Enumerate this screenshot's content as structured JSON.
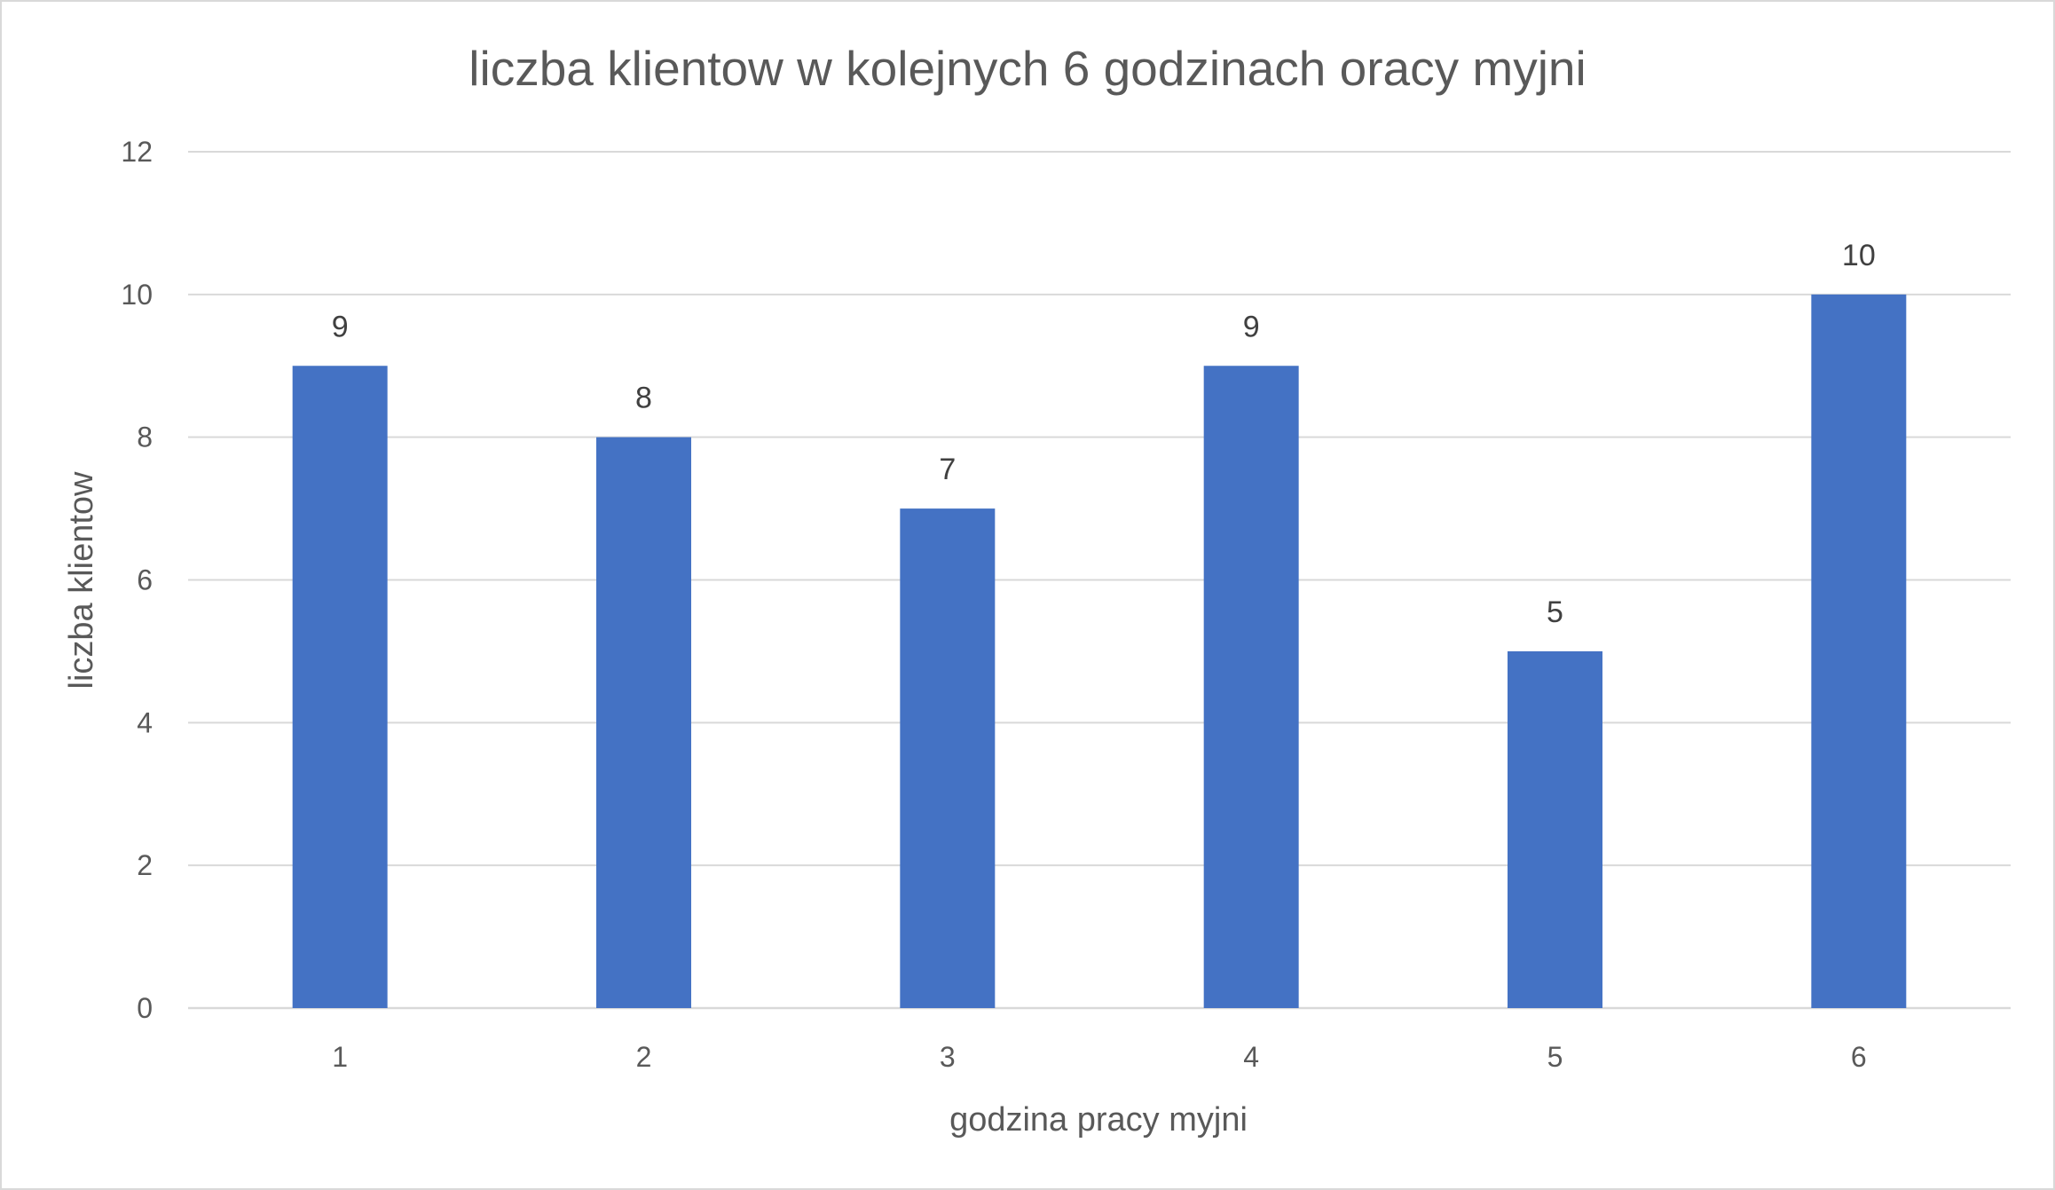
{
  "chart_data": {
    "type": "bar",
    "title": "liczba klientow w kolejnych 6 godzinach oracy myjni",
    "xlabel": "godzina pracy myjni",
    "ylabel": "liczba klientow",
    "categories": [
      "1",
      "2",
      "3",
      "4",
      "5",
      "6"
    ],
    "series": [
      {
        "values": [
          9,
          8,
          7,
          9,
          5,
          10
        ]
      }
    ],
    "data_labels": [
      "9",
      "8",
      "7",
      "9",
      "5",
      "10"
    ],
    "ylim": [
      0,
      12
    ],
    "yticks": [
      "0",
      "2",
      "4",
      "6",
      "8",
      "10",
      "12"
    ],
    "grid": true,
    "legend": "none",
    "bar_color": "#4472C4"
  }
}
